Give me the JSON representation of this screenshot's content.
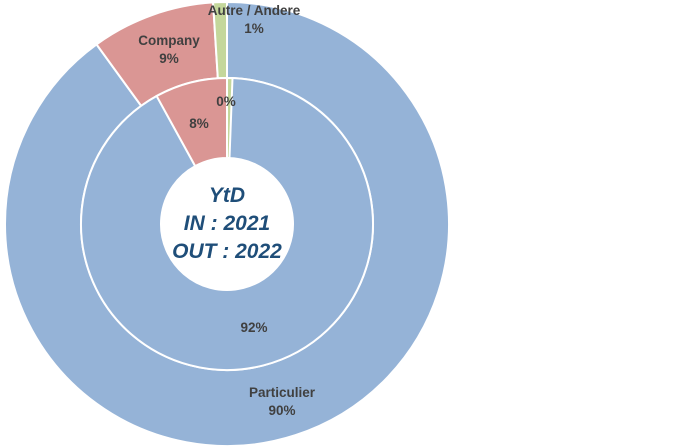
{
  "chart_data": {
    "type": "pie",
    "subtype": "nested-donut",
    "center_text": [
      "YtD",
      "IN : 2021",
      "OUT : 2022"
    ],
    "categories": [
      "Particulier",
      "Company",
      "Autre / Andere"
    ],
    "colors": [
      "#95b3d7",
      "#da9694",
      "#c4d79b"
    ],
    "series": [
      {
        "ring": "outer",
        "values": [
          90,
          9,
          1
        ],
        "labels": [
          "90%",
          "9%",
          "1%"
        ]
      },
      {
        "ring": "inner",
        "values": [
          92,
          8,
          0
        ],
        "labels": [
          "92%",
          "8%",
          "0%"
        ]
      }
    ],
    "legend": "none"
  }
}
